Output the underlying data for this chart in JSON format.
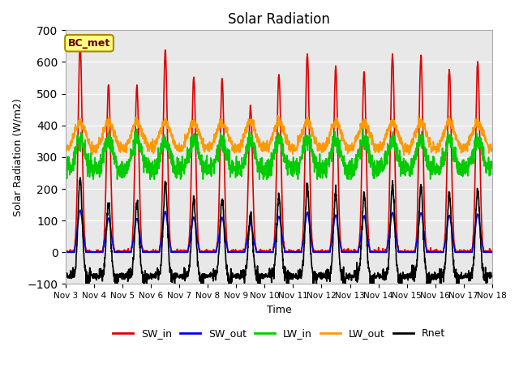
{
  "title": "Solar Radiation",
  "ylabel": "Solar Radiation (W/m2)",
  "xlabel": "Time",
  "ylim": [
    -100,
    700
  ],
  "bg_color": "#e8e8e8",
  "fig_bg": "#ffffff",
  "label_text": "BC_met",
  "series": {
    "SW_in": {
      "color": "#dd0000",
      "lw": 1.2
    },
    "SW_out": {
      "color": "#0000ee",
      "lw": 1.2
    },
    "LW_in": {
      "color": "#00cc00",
      "lw": 1.2
    },
    "LW_out": {
      "color": "#ff9900",
      "lw": 1.2
    },
    "Rnet": {
      "color": "#000000",
      "lw": 1.2
    }
  },
  "xtick_labels": [
    "Nov 3",
    "Nov 4",
    "Nov 5",
    "Nov 6",
    "Nov 7",
    "Nov 8",
    "Nov 9",
    "Nov 10",
    "Nov 11",
    "Nov 12",
    "Nov 13",
    "Nov 14",
    "Nov 15",
    "Nov 16",
    "Nov 17",
    "Nov 18"
  ],
  "days": 15,
  "pts_per_day": 144,
  "peaks_SW_in": [
    660,
    530,
    525,
    640,
    550,
    545,
    460,
    565,
    625,
    585,
    570,
    625,
    620,
    575,
    600
  ],
  "night_rnet": -75,
  "lw_in_base": 265,
  "lw_out_base": 330
}
